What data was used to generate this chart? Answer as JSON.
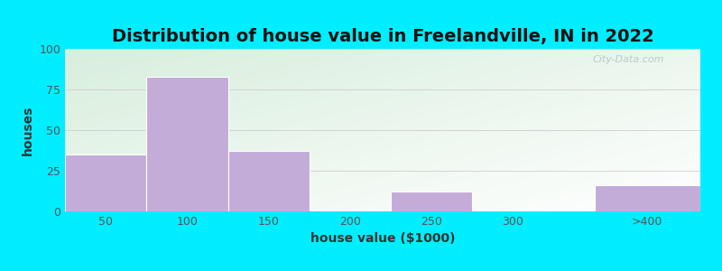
{
  "title": "Distribution of house value in Freelandville, IN in 2022",
  "xlabel": "house value ($1000)",
  "ylabel": "houses",
  "bar_lefts": [
    25,
    75,
    125,
    225,
    350
  ],
  "bar_rights": [
    75,
    125,
    175,
    275,
    415
  ],
  "bar_heights": [
    35,
    83,
    37,
    12,
    16
  ],
  "bar_color": "#c3acd8",
  "bar_edgecolor": "#ffffff",
  "xtick_labels": [
    "50",
    "100",
    "150",
    "200",
    "250",
    "300",
    ">400"
  ],
  "xtick_positions": [
    50,
    100,
    150,
    200,
    250,
    300,
    382
  ],
  "ytick_positions": [
    0,
    25,
    50,
    75,
    100
  ],
  "ylim": [
    0,
    100
  ],
  "xlim": [
    25,
    415
  ],
  "outer_bg": "#00eeff",
  "grad_color_topleft": "#d8eedd",
  "grad_color_bottomright": "#f0f4f0",
  "grid_color": "#cccccc",
  "title_fontsize": 14,
  "axis_label_fontsize": 10,
  "tick_fontsize": 9,
  "title_color": "#111111",
  "label_color": "#333333",
  "tick_color": "#555555"
}
